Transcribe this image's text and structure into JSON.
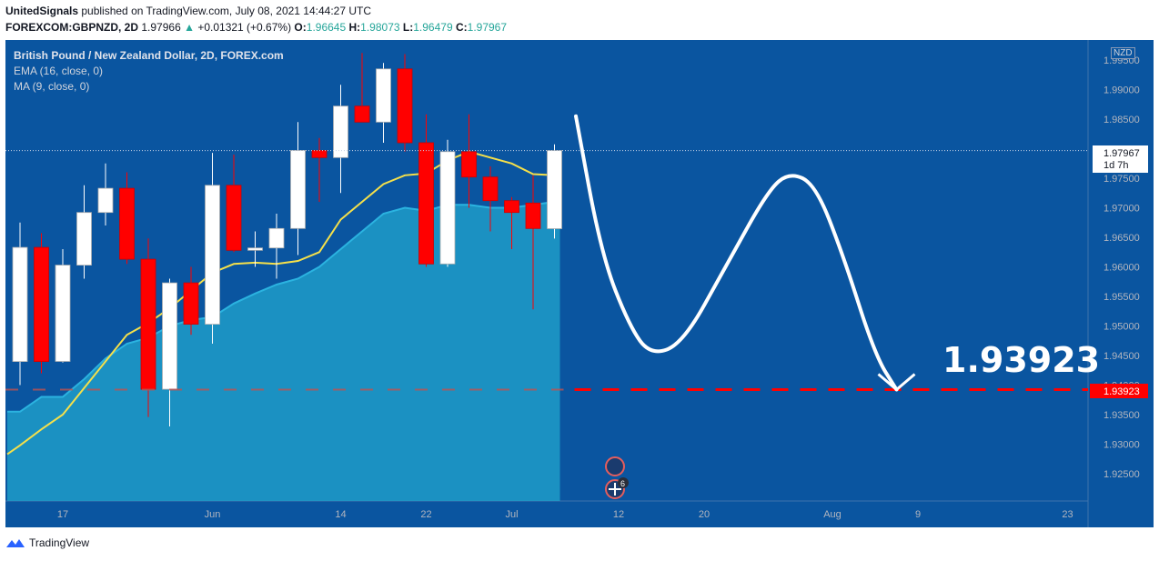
{
  "header": {
    "publisher": "UnitedSignals",
    "published_text": "published on TradingView.com, July 08, 2021 14:44:27 UTC",
    "symbol": "FOREXCOM:GBPNZD, 2D",
    "last": "1.97966",
    "change": "+0.01321 (+0.67%)",
    "o_label": "O:",
    "o_value": "1.96645",
    "h_label": "H:",
    "h_value": "1.98073",
    "l_label": "L:",
    "l_value": "1.96479",
    "c_label": "C:",
    "c_value": "1.97967"
  },
  "legend": {
    "title": "British Pound / New Zealand Dollar, 2D, FOREX.com",
    "ema": "EMA (16, close, 0)",
    "ma": "MA (9, close, 0)"
  },
  "currency_badge": "NZD",
  "price_label": {
    "value": "1.97967",
    "countdown": "1d 7h"
  },
  "target_badge": "1.93923",
  "target_annotation": "1.93923",
  "event_badge_count": "6",
  "footer": {
    "brand": "TradingView"
  },
  "colors": {
    "background": "#0a55a0",
    "bull": "#ffffff",
    "bear": "#ff0000",
    "ema": "#f5e04a",
    "area_fill": "#1e9cc8",
    "target_line": "#ff0000"
  },
  "chart_data": {
    "type": "candlestick",
    "symbol": "GBPNZD",
    "timeframe": "2D",
    "ylim": [
      1.92,
      1.9995
    ],
    "y_ticks": [
      "1.99500",
      "1.99000",
      "1.98500",
      "1.98000",
      "1.97500",
      "1.97000",
      "1.96500",
      "1.96000",
      "1.95500",
      "1.95000",
      "1.94500",
      "1.94000",
      "1.93500",
      "1.93000",
      "1.92500"
    ],
    "x_ticks": [
      {
        "label": "17",
        "index": 2
      },
      {
        "label": "Jun",
        "index": 9
      },
      {
        "label": "14",
        "index": 15
      },
      {
        "label": "22",
        "index": 19
      },
      {
        "label": "Jul",
        "index": 23
      },
      {
        "label": "12",
        "index": 28
      },
      {
        "label": "20",
        "index": 32
      },
      {
        "label": "Aug",
        "index": 38
      },
      {
        "label": "9",
        "index": 42
      },
      {
        "label": "23",
        "index": 49
      }
    ],
    "candles": [
      {
        "o": 1.944,
        "h": 1.9675,
        "l": 1.94,
        "c": 1.9633
      },
      {
        "o": 1.9633,
        "h": 1.9657,
        "l": 1.942,
        "c": 1.944
      },
      {
        "o": 1.944,
        "h": 1.963,
        "l": 1.9438,
        "c": 1.9603
      },
      {
        "o": 1.9603,
        "h": 1.9738,
        "l": 1.958,
        "c": 1.9692
      },
      {
        "o": 1.9692,
        "h": 1.9775,
        "l": 1.967,
        "c": 1.9733
      },
      {
        "o": 1.9733,
        "h": 1.976,
        "l": 1.9605,
        "c": 1.9613
      },
      {
        "o": 1.9613,
        "h": 1.9648,
        "l": 1.9346,
        "c": 1.9393
      },
      {
        "o": 1.9393,
        "h": 1.958,
        "l": 1.933,
        "c": 1.9573
      },
      {
        "o": 1.9573,
        "h": 1.96,
        "l": 1.9485,
        "c": 1.9503
      },
      {
        "o": 1.9503,
        "h": 1.9793,
        "l": 1.947,
        "c": 1.9738
      },
      {
        "o": 1.9738,
        "h": 1.979,
        "l": 1.9625,
        "c": 1.9628
      },
      {
        "o": 1.9628,
        "h": 1.966,
        "l": 1.96,
        "c": 1.9632
      },
      {
        "o": 1.9632,
        "h": 1.969,
        "l": 1.958,
        "c": 1.9665
      },
      {
        "o": 1.9665,
        "h": 1.9845,
        "l": 1.962,
        "c": 1.9797
      },
      {
        "o": 1.9797,
        "h": 1.9818,
        "l": 1.971,
        "c": 1.9785
      },
      {
        "o": 1.9785,
        "h": 1.9908,
        "l": 1.9725,
        "c": 1.9872
      },
      {
        "o": 1.9872,
        "h": 1.9962,
        "l": 1.9845,
        "c": 1.9845
      },
      {
        "o": 1.9845,
        "h": 1.9945,
        "l": 1.981,
        "c": 1.9935
      },
      {
        "o": 1.9935,
        "h": 1.996,
        "l": 1.9795,
        "c": 1.981
      },
      {
        "o": 1.981,
        "h": 1.9858,
        "l": 1.96,
        "c": 1.9605
      },
      {
        "o": 1.9605,
        "h": 1.9815,
        "l": 1.96,
        "c": 1.9795
      },
      {
        "o": 1.9795,
        "h": 1.9858,
        "l": 1.97,
        "c": 1.9752
      },
      {
        "o": 1.9752,
        "h": 1.977,
        "l": 1.966,
        "c": 1.9712
      },
      {
        "o": 1.9712,
        "h": 1.9718,
        "l": 1.963,
        "c": 1.9692
      },
      {
        "o": 1.9708,
        "h": 1.9755,
        "l": 1.9528,
        "c": 1.9665
      },
      {
        "o": 1.96645,
        "h": 1.98073,
        "l": 1.96479,
        "c": 1.97967
      }
    ],
    "ema16": [
      1.9298,
      1.9325,
      1.935,
      1.9395,
      1.944,
      1.9485,
      1.9505,
      1.953,
      1.956,
      1.959,
      1.9605,
      1.9607,
      1.9605,
      1.961,
      1.9625,
      1.968,
      1.971,
      1.974,
      1.9755,
      1.9758,
      1.978,
      1.9795,
      1.9785,
      1.9775,
      1.9757,
      1.9755
    ],
    "ma9_area_top": [
      1.9355,
      1.938,
      1.938,
      1.941,
      1.9445,
      1.947,
      1.948,
      1.95,
      1.951,
      1.9515,
      1.9538,
      1.9555,
      1.957,
      1.958,
      1.96,
      1.963,
      1.966,
      1.969,
      1.97,
      1.9695,
      1.9705,
      1.9705,
      1.97,
      1.97,
      1.9705,
      1.971
    ],
    "horizontal_line": 1.93923,
    "last_price_line": 1.97967,
    "projection_path": [
      {
        "index": 26.0,
        "price": 1.9855
      },
      {
        "index": 27.2,
        "price": 1.962
      },
      {
        "index": 28.5,
        "price": 1.95
      },
      {
        "index": 29.5,
        "price": 1.945
      },
      {
        "index": 31.0,
        "price": 1.947
      },
      {
        "index": 33.0,
        "price": 1.96
      },
      {
        "index": 35.0,
        "price": 1.973
      },
      {
        "index": 36.0,
        "price": 1.976
      },
      {
        "index": 37.2,
        "price": 1.974
      },
      {
        "index": 38.5,
        "price": 1.962
      },
      {
        "index": 40.0,
        "price": 1.945
      },
      {
        "index": 41.0,
        "price": 1.93923
      }
    ]
  }
}
